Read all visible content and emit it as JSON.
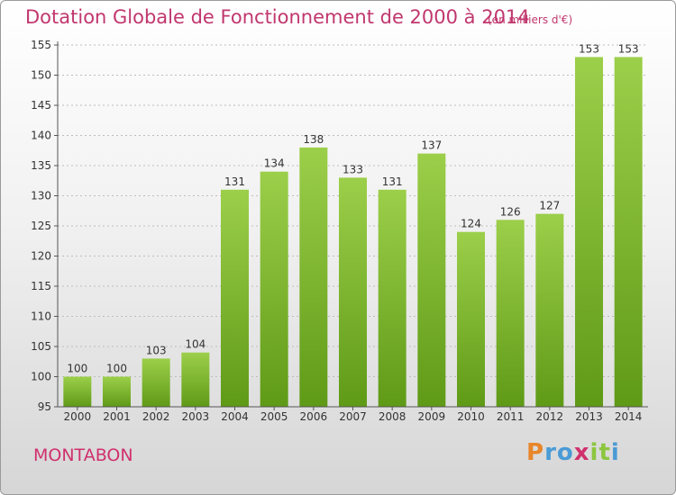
{
  "header": {
    "title": "Dotation Globale de Fonctionnement de 2000 à 2014",
    "unit": "(en milliers d'€)"
  },
  "footer": {
    "town": "MONTABON",
    "brand": "Proxiti"
  },
  "colors": {
    "bar_light": "#9ccf4a",
    "bar_dark": "#5f9a17",
    "title": "#c1376e",
    "brand_orange": "#e8862a",
    "brand_blue": "#4a9bd6",
    "brand_pink": "#d0306d",
    "brand_green": "#8cc63f"
  },
  "chart_data": {
    "type": "bar",
    "categories": [
      "2000",
      "2001",
      "2002",
      "2003",
      "2004",
      "2005",
      "2006",
      "2007",
      "2008",
      "2009",
      "2010",
      "2011",
      "2012",
      "2013",
      "2014"
    ],
    "values": [
      100,
      100,
      103,
      104,
      131,
      134,
      138,
      133,
      131,
      137,
      124,
      126,
      127,
      153,
      153
    ],
    "title": "Dotation Globale de Fonctionnement de 2000 à 2014",
    "subtitle": "(en milliers d'€)",
    "xlabel": "",
    "ylabel": "",
    "ylim": [
      95,
      155
    ],
    "yticks": [
      95,
      100,
      105,
      110,
      115,
      120,
      125,
      130,
      135,
      140,
      145,
      150,
      155
    ],
    "grid": true,
    "legend": "none"
  }
}
